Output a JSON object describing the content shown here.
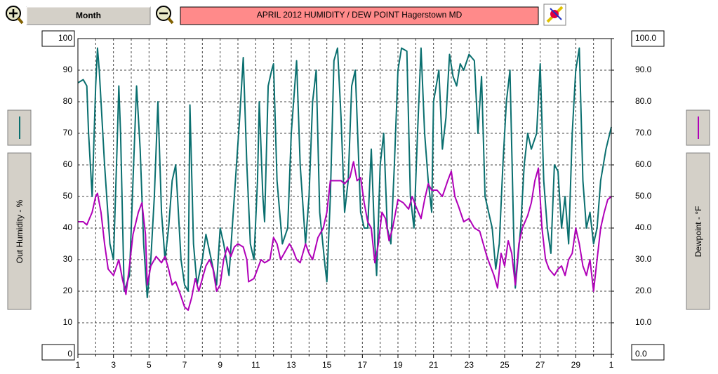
{
  "controls": {
    "period": "Month"
  },
  "chart_data": {
    "type": "line",
    "title": "APRIL  2012  HUMIDITY / DEW POINT  Hagerstown MD",
    "xlim": [
      1,
      31
    ],
    "xticks": [
      1,
      3,
      5,
      7,
      9,
      11,
      13,
      15,
      17,
      19,
      21,
      23,
      25,
      27,
      29,
      {
        "value": 31,
        "label": "1"
      }
    ],
    "xminor_ticks": [
      2,
      4,
      6,
      8,
      10,
      12,
      14,
      16,
      18,
      20,
      22,
      24,
      26,
      28,
      30
    ],
    "ylim": [
      0,
      100
    ],
    "yticks": [
      0,
      10,
      20,
      30,
      40,
      50,
      60,
      70,
      80,
      90,
      100
    ],
    "y2lim": [
      0,
      100
    ],
    "y2ticks": [
      {
        "value": 0,
        "label": "0.0"
      },
      {
        "value": 10,
        "label": "10.0"
      },
      {
        "value": 20,
        "label": "20.0"
      },
      {
        "value": 30,
        "label": "30.0"
      },
      {
        "value": 40,
        "label": "40.0"
      },
      {
        "value": 50,
        "label": "50.0"
      },
      {
        "value": 60,
        "label": "60.0"
      },
      {
        "value": 70,
        "label": "70.0"
      },
      {
        "value": 80,
        "label": "80.0"
      },
      {
        "value": 90,
        "label": "90.0"
      },
      {
        "value": 100,
        "label": "100.0"
      }
    ],
    "grid": true,
    "series": [
      {
        "name": "Out Humidity - %",
        "color": "#0a6f6f",
        "axis": "y",
        "x": [
          1.0,
          1.3,
          1.5,
          1.6,
          1.8,
          2.0,
          2.1,
          2.2,
          2.5,
          2.8,
          3.0,
          3.2,
          3.3,
          3.4,
          3.6,
          3.9,
          4.1,
          4.3,
          4.5,
          4.7,
          4.9,
          5.1,
          5.3,
          5.5,
          5.7,
          5.9,
          6.1,
          6.3,
          6.5,
          6.6,
          6.8,
          7.0,
          7.2,
          7.3,
          7.5,
          7.7,
          8.0,
          8.2,
          8.5,
          8.8,
          9.0,
          9.2,
          9.5,
          9.8,
          10.1,
          10.3,
          10.5,
          10.7,
          10.9,
          11.1,
          11.2,
          11.4,
          11.5,
          11.7,
          11.9,
          12.0,
          12.2,
          12.5,
          12.8,
          13.0,
          13.3,
          13.5,
          13.8,
          14.0,
          14.2,
          14.4,
          14.6,
          14.9,
          15.0,
          15.2,
          15.4,
          15.6,
          15.8,
          16.0,
          16.2,
          16.4,
          16.6,
          16.9,
          17.1,
          17.3,
          17.5,
          17.7,
          17.8,
          18.0,
          18.2,
          18.4,
          18.6,
          18.8,
          19.0,
          19.2,
          19.5,
          19.7,
          19.9,
          20.1,
          20.3,
          20.5,
          20.7,
          20.9,
          21.0,
          21.3,
          21.5,
          21.7,
          21.9,
          22.1,
          22.3,
          22.5,
          22.7,
          23.0,
          23.3,
          23.5,
          23.7,
          23.9,
          24.1,
          24.3,
          24.5,
          24.7,
          24.9,
          25.1,
          25.3,
          25.5,
          25.6,
          25.9,
          26.1,
          26.3,
          26.5,
          26.8,
          27.0,
          27.2,
          27.4,
          27.6,
          27.8,
          28.0,
          28.2,
          28.4,
          28.6,
          28.8,
          29.0,
          29.2,
          29.4,
          29.6,
          29.8,
          30.0,
          30.2,
          30.4,
          30.7,
          31.0
        ],
        "values": [
          86,
          87,
          85,
          70,
          50,
          85,
          97,
          90,
          60,
          35,
          30,
          65,
          85,
          70,
          20,
          25,
          55,
          85,
          65,
          35,
          18,
          30,
          50,
          80,
          45,
          30,
          40,
          55,
          60,
          50,
          30,
          22,
          20,
          79,
          35,
          22,
          30,
          38,
          30,
          22,
          40,
          35,
          25,
          50,
          75,
          94,
          60,
          35,
          30,
          55,
          80,
          50,
          42,
          85,
          90,
          92,
          55,
          35,
          40,
          70,
          93,
          60,
          35,
          50,
          80,
          90,
          45,
          28,
          23,
          50,
          93,
          97,
          75,
          45,
          55,
          85,
          90,
          45,
          40,
          40,
          65,
          35,
          25,
          60,
          70,
          40,
          35,
          60,
          90,
          97,
          96,
          50,
          40,
          70,
          97,
          70,
          55,
          45,
          80,
          90,
          65,
          75,
          95,
          88,
          85,
          92,
          90,
          95,
          93,
          70,
          88,
          50,
          45,
          40,
          27,
          35,
          60,
          80,
          90,
          40,
          21,
          40,
          60,
          70,
          65,
          70,
          92,
          55,
          40,
          32,
          60,
          58,
          40,
          50,
          35,
          70,
          90,
          97,
          55,
          40,
          45,
          35,
          40,
          55,
          65,
          72
        ]
      },
      {
        "name": "Dewpoint - °F",
        "color": "#b000b8",
        "axis": "y2",
        "x": [
          1.0,
          1.3,
          1.5,
          1.8,
          2.0,
          2.1,
          2.3,
          2.5,
          2.7,
          3.0,
          3.3,
          3.5,
          3.7,
          3.9,
          4.1,
          4.4,
          4.6,
          4.8,
          4.9,
          5.1,
          5.4,
          5.7,
          5.9,
          6.1,
          6.3,
          6.5,
          6.7,
          7.0,
          7.2,
          7.4,
          7.6,
          7.8,
          8.0,
          8.2,
          8.4,
          8.6,
          8.8,
          9.0,
          9.2,
          9.4,
          9.6,
          9.8,
          10.0,
          10.3,
          10.5,
          10.6,
          10.9,
          11.1,
          11.3,
          11.5,
          11.8,
          12.0,
          12.2,
          12.4,
          12.6,
          12.9,
          13.1,
          13.3,
          13.5,
          13.8,
          14.0,
          14.2,
          14.5,
          14.8,
          15.0,
          15.2,
          15.5,
          15.8,
          16.0,
          16.3,
          16.5,
          16.7,
          16.9,
          17.1,
          17.3,
          17.5,
          17.7,
          17.9,
          18.1,
          18.3,
          18.5,
          18.7,
          19.0,
          19.3,
          19.6,
          19.8,
          20.0,
          20.3,
          20.5,
          20.7,
          20.9,
          21.2,
          21.5,
          21.8,
          22.0,
          22.2,
          22.4,
          22.7,
          23.0,
          23.3,
          23.6,
          23.8,
          24.0,
          24.2,
          24.4,
          24.6,
          24.8,
          25.0,
          25.2,
          25.4,
          25.6,
          25.8,
          26.0,
          26.3,
          26.5,
          26.7,
          26.9,
          27.1,
          27.3,
          27.5,
          27.8,
          28.0,
          28.2,
          28.4,
          28.6,
          28.8,
          29.0,
          29.2,
          29.4,
          29.6,
          29.8,
          30.0,
          30.2,
          30.4,
          30.6,
          30.8,
          31.0
        ],
        "values": [
          42,
          42,
          41,
          45,
          50,
          51,
          45,
          35,
          27,
          25,
          30,
          24,
          19,
          28,
          38,
          45,
          48,
          38,
          22,
          28,
          31,
          29,
          31,
          27,
          22,
          23,
          20,
          15,
          14,
          18,
          24,
          20,
          24,
          28,
          30,
          27,
          20,
          22,
          30,
          34,
          31,
          34,
          35,
          34,
          30,
          23,
          24,
          27,
          30,
          29,
          30,
          37,
          35,
          30,
          32,
          35,
          33,
          30,
          29,
          35,
          32,
          30,
          37,
          40,
          45,
          55,
          55,
          55,
          54,
          56,
          61,
          55,
          56,
          48,
          42,
          40,
          29,
          35,
          45,
          43,
          36,
          40,
          49,
          48,
          46,
          50,
          47,
          43,
          49,
          54,
          52,
          52,
          50,
          55,
          58,
          50,
          47,
          42,
          43,
          40,
          39,
          35,
          31,
          28,
          25,
          21,
          32,
          28,
          36,
          32,
          22,
          35,
          40,
          44,
          48,
          55,
          59,
          40,
          30,
          27,
          25,
          27,
          28,
          25,
          30,
          32,
          40,
          35,
          28,
          25,
          30,
          20,
          30,
          40,
          45,
          49,
          50
        ]
      }
    ]
  }
}
